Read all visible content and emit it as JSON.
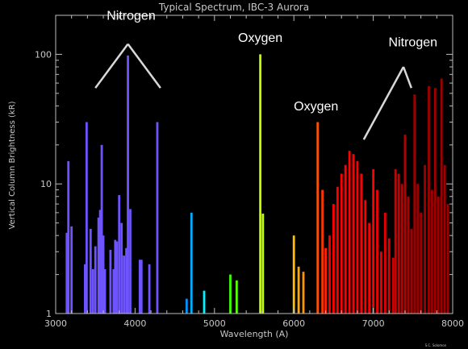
{
  "chart_data": {
    "type": "bar",
    "title": "Typical Spectrum, IBC-3 Aurora",
    "xlabel": "Wavelength (A)",
    "ylabel": "Vertical Column Brightness (kR)",
    "xlim": [
      3000,
      8000
    ],
    "ylim": [
      1,
      200
    ],
    "yscale": "log",
    "grid": false,
    "x_ticks": [
      3000,
      4000,
      5000,
      6000,
      7000,
      8000
    ],
    "y_ticks": [
      {
        "value": 1,
        "label": "1"
      },
      {
        "value": 10,
        "label": "10"
      },
      {
        "value": 100,
        "label": "100"
      }
    ],
    "lines": [
      {
        "x": 3140,
        "y": 4.2
      },
      {
        "x": 3160,
        "y": 15
      },
      {
        "x": 3200,
        "y": 4.7
      },
      {
        "x": 3370,
        "y": 2.4
      },
      {
        "x": 3390,
        "y": 30
      },
      {
        "x": 3440,
        "y": 4.5
      },
      {
        "x": 3470,
        "y": 2.2
      },
      {
        "x": 3500,
        "y": 3.3
      },
      {
        "x": 3540,
        "y": 5.5
      },
      {
        "x": 3560,
        "y": 6.3
      },
      {
        "x": 3580,
        "y": 20
      },
      {
        "x": 3600,
        "y": 4.0
      },
      {
        "x": 3620,
        "y": 2.2
      },
      {
        "x": 3690,
        "y": 3.1
      },
      {
        "x": 3730,
        "y": 2.2
      },
      {
        "x": 3750,
        "y": 3.7
      },
      {
        "x": 3770,
        "y": 3.6
      },
      {
        "x": 3800,
        "y": 8.2
      },
      {
        "x": 3830,
        "y": 5.0
      },
      {
        "x": 3860,
        "y": 2.8
      },
      {
        "x": 3890,
        "y": 3.2
      },
      {
        "x": 3910,
        "y": 98
      },
      {
        "x": 3940,
        "y": 6.4
      },
      {
        "x": 4060,
        "y": 2.6
      },
      {
        "x": 4080,
        "y": 2.6
      },
      {
        "x": 4180,
        "y": 2.4
      },
      {
        "x": 4280,
        "y": 30
      },
      {
        "x": 4650,
        "y": 1.3
      },
      {
        "x": 4710,
        "y": 6.0
      },
      {
        "x": 4870,
        "y": 1.5
      },
      {
        "x": 5200,
        "y": 2.0
      },
      {
        "x": 5280,
        "y": 1.8
      },
      {
        "x": 5577,
        "y": 100
      },
      {
        "x": 5610,
        "y": 5.9
      },
      {
        "x": 6000,
        "y": 4.0
      },
      {
        "x": 6060,
        "y": 2.3
      },
      {
        "x": 6120,
        "y": 2.1
      },
      {
        "x": 6300,
        "y": 30
      },
      {
        "x": 6360,
        "y": 9.0
      },
      {
        "x": 6400,
        "y": 3.2
      },
      {
        "x": 6450,
        "y": 4.0
      },
      {
        "x": 6500,
        "y": 7.0
      },
      {
        "x": 6550,
        "y": 9.5
      },
      {
        "x": 6600,
        "y": 12
      },
      {
        "x": 6650,
        "y": 14
      },
      {
        "x": 6700,
        "y": 18
      },
      {
        "x": 6750,
        "y": 17
      },
      {
        "x": 6800,
        "y": 15
      },
      {
        "x": 6850,
        "y": 12
      },
      {
        "x": 6900,
        "y": 7.5
      },
      {
        "x": 6950,
        "y": 5.0
      },
      {
        "x": 7000,
        "y": 13
      },
      {
        "x": 7050,
        "y": 9.0
      },
      {
        "x": 7100,
        "y": 3.0
      },
      {
        "x": 7150,
        "y": 6.0
      },
      {
        "x": 7200,
        "y": 3.8
      },
      {
        "x": 7250,
        "y": 2.7
      },
      {
        "x": 7280,
        "y": 13
      },
      {
        "x": 7320,
        "y": 12
      },
      {
        "x": 7360,
        "y": 10
      },
      {
        "x": 7400,
        "y": 24
      },
      {
        "x": 7440,
        "y": 8.0
      },
      {
        "x": 7480,
        "y": 4.5
      },
      {
        "x": 7520,
        "y": 49
      },
      {
        "x": 7560,
        "y": 10
      },
      {
        "x": 7600,
        "y": 6.0
      },
      {
        "x": 7650,
        "y": 14
      },
      {
        "x": 7700,
        "y": 57
      },
      {
        "x": 7740,
        "y": 9.0
      },
      {
        "x": 7780,
        "y": 55
      },
      {
        "x": 7820,
        "y": 8.0
      },
      {
        "x": 7860,
        "y": 65
      },
      {
        "x": 7900,
        "y": 14
      },
      {
        "x": 7940,
        "y": 7.0
      }
    ],
    "annotations": [
      {
        "text": "Nitrogen",
        "x": 3950,
        "y": 185
      },
      {
        "text": "Oxygen",
        "x": 5577,
        "y": 125
      },
      {
        "text": "Oxygen",
        "x": 6280,
        "y": 37
      },
      {
        "text": "Nitrogen",
        "x": 7500,
        "y": 115
      }
    ],
    "annotation_pointers": [
      {
        "from": {
          "x": 3910,
          "y": 120
        },
        "to": {
          "x": 3500,
          "y": 55
        }
      },
      {
        "from": {
          "x": 3910,
          "y": 120
        },
        "to": {
          "x": 4320,
          "y": 55
        }
      },
      {
        "from": {
          "x": 7380,
          "y": 80
        },
        "to": {
          "x": 6880,
          "y": 22
        }
      },
      {
        "from": {
          "x": 7380,
          "y": 80
        },
        "to": {
          "x": 7480,
          "y": 55
        }
      }
    ]
  },
  "credit": "S.C. Solomon"
}
